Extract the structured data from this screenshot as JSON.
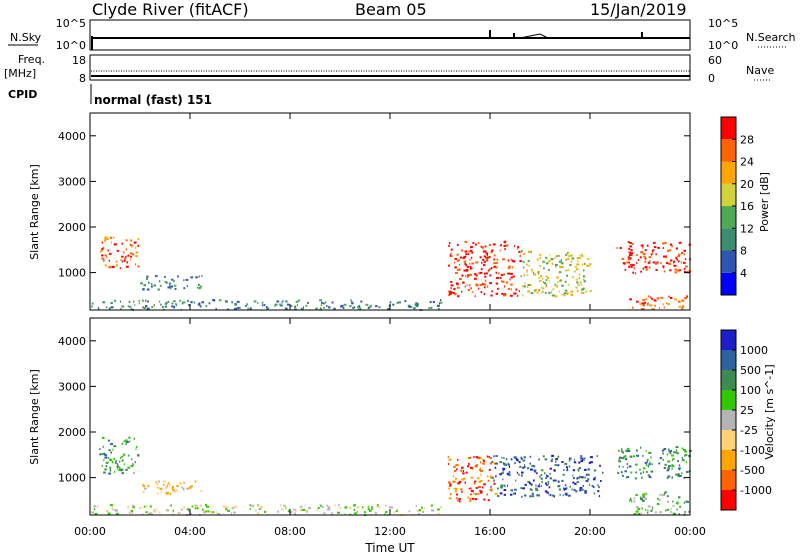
{
  "header": {
    "station": "Clyde River (fitACF)",
    "beam": "Beam 05",
    "date": "15/Jan/2019"
  },
  "status_panels": {
    "nsky_label": "N.Sky",
    "nsky_ticks": [
      "10^5",
      "10^0"
    ],
    "nsearch_label": "N.Search",
    "nsearch_ticks": [
      "10^5",
      "10^0"
    ],
    "freq_label_line1": "Freq.",
    "freq_label_line2": "[MHz]",
    "freq_ticks": [
      "18",
      "8"
    ],
    "nave_label": "Nave",
    "nave_ticks": [
      "60",
      "0"
    ],
    "cpid_label": "CPID",
    "cpid_value": "normal (fast) 151"
  },
  "chart_data": [
    {
      "type": "heatmap",
      "name": "power",
      "ylabel": "Slant Range [km]",
      "yticks": [
        "4000",
        "3000",
        "2000",
        "1000"
      ],
      "ylim": [
        180,
        4500
      ],
      "xlim": [
        0,
        24
      ],
      "colorbar_label": "Power [dB]",
      "colorbar_ticks": [
        "28",
        "24",
        "20",
        "16",
        "12",
        "8",
        "4"
      ],
      "colors": [
        "#0000ff",
        "#2c55b4",
        "#3d8c6e",
        "#50aa55",
        "#d2d23c",
        "#ffa500",
        "#ff6400",
        "#ff0000"
      ],
      "echo_regions": [
        {
          "t": [
            0.35,
            1.9
          ],
          "r": [
            1100,
            1800
          ],
          "level": 6
        },
        {
          "t": [
            2.0,
            4.5
          ],
          "r": [
            650,
            950
          ],
          "level": 2
        },
        {
          "t": [
            0.0,
            14.0
          ],
          "r": [
            200,
            420
          ],
          "level": 2
        },
        {
          "t": [
            14.3,
            17.2
          ],
          "r": [
            500,
            1700
          ],
          "level": 7
        },
        {
          "t": [
            17.2,
            20.0
          ],
          "r": [
            500,
            1500
          ],
          "level": 4
        },
        {
          "t": [
            21.0,
            24.0
          ],
          "r": [
            1000,
            1700
          ],
          "level": 7
        },
        {
          "t": [
            21.5,
            24.0
          ],
          "r": [
            200,
            500
          ],
          "level": 6
        }
      ]
    },
    {
      "type": "heatmap",
      "name": "velocity",
      "xlabel": "Time UT",
      "xticks": [
        "00:00",
        "04:00",
        "08:00",
        "12:00",
        "16:00",
        "20:00",
        "00:00"
      ],
      "ylabel": "Slant Range [km]",
      "yticks": [
        "4000",
        "3000",
        "2000",
        "1000"
      ],
      "ylim": [
        180,
        4500
      ],
      "xlim": [
        0,
        24
      ],
      "colorbar_label": "Velocity [m s^-1]",
      "colorbar_ticks": [
        "1000",
        "500",
        "100",
        "25",
        "-25",
        "-100",
        "-500",
        "-1000"
      ],
      "colors": [
        "#ff0000",
        "#ff6400",
        "#ffa500",
        "#ffd278",
        "#b4b4b4",
        "#32c800",
        "#3c8c50",
        "#2d64a0",
        "#1e1ec8"
      ],
      "echo_regions": [
        {
          "t": [
            0.35,
            1.9
          ],
          "r": [
            1100,
            1900
          ],
          "level": 6
        },
        {
          "t": [
            2.0,
            4.5
          ],
          "r": [
            650,
            950
          ],
          "level": 3
        },
        {
          "t": [
            0.0,
            14.0
          ],
          "r": [
            200,
            420
          ],
          "level": 4
        },
        {
          "t": [
            14.3,
            16.2
          ],
          "r": [
            500,
            1500
          ],
          "level": 1
        },
        {
          "t": [
            16.0,
            20.5
          ],
          "r": [
            600,
            1500
          ],
          "level": 7
        },
        {
          "t": [
            21.0,
            24.0
          ],
          "r": [
            1000,
            1700
          ],
          "level": 6
        },
        {
          "t": [
            21.5,
            24.0
          ],
          "r": [
            200,
            700
          ],
          "level": 5
        }
      ]
    }
  ]
}
